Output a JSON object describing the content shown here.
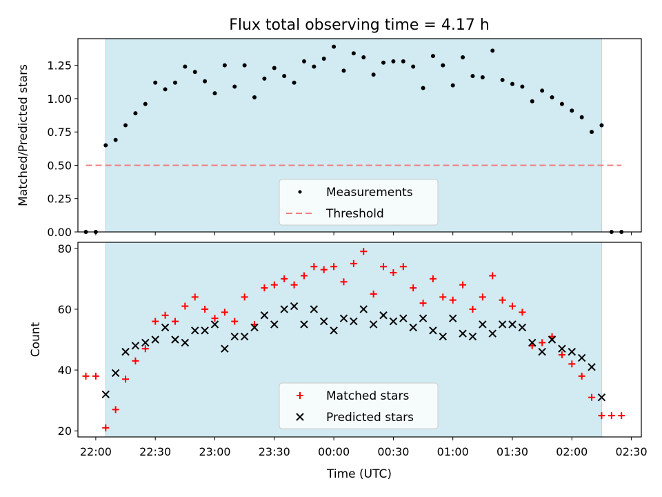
{
  "title": "Flux total observing time = 4.17 h",
  "colors": {
    "shade": "#add8e6",
    "measurements": "#000000",
    "threshold": "#f08080",
    "matched": "#ff0000",
    "predicted": "#000000"
  },
  "chart_data": [
    {
      "type": "scatter",
      "ylabel": "Matched/Predicted stars",
      "ylim": [
        0,
        1.45
      ],
      "yticks": [
        "0.00",
        "0.25",
        "0.50",
        "0.75",
        "1.00",
        "1.25"
      ],
      "xlim": [
        "21:51",
        "02:35"
      ],
      "shaded_interval": [
        "22:05",
        "02:15"
      ],
      "legend_position": "lower center",
      "legend": [
        "Measurements",
        "Threshold"
      ],
      "series": [
        {
          "name": "Measurements",
          "marker": "dot",
          "points": [
            [
              "21:55",
              0.0
            ],
            [
              "22:00",
              0.0
            ],
            [
              "22:05",
              0.65
            ],
            [
              "22:10",
              0.69
            ],
            [
              "22:15",
              0.8
            ],
            [
              "22:20",
              0.89
            ],
            [
              "22:25",
              0.96
            ],
            [
              "22:30",
              1.12
            ],
            [
              "22:35",
              1.07
            ],
            [
              "22:40",
              1.12
            ],
            [
              "22:45",
              1.24
            ],
            [
              "22:50",
              1.2
            ],
            [
              "22:55",
              1.13
            ],
            [
              "23:00",
              1.04
            ],
            [
              "23:05",
              1.25
            ],
            [
              "23:10",
              1.09
            ],
            [
              "23:15",
              1.25
            ],
            [
              "23:20",
              1.01
            ],
            [
              "23:25",
              1.15
            ],
            [
              "23:30",
              1.23
            ],
            [
              "23:35",
              1.17
            ],
            [
              "23:40",
              1.12
            ],
            [
              "23:45",
              1.28
            ],
            [
              "23:50",
              1.24
            ],
            [
              "23:55",
              1.3
            ],
            [
              "00:00",
              1.39
            ],
            [
              "00:05",
              1.21
            ],
            [
              "00:10",
              1.34
            ],
            [
              "00:15",
              1.31
            ],
            [
              "00:20",
              1.18
            ],
            [
              "00:25",
              1.27
            ],
            [
              "00:30",
              1.28
            ],
            [
              "00:35",
              1.28
            ],
            [
              "00:40",
              1.24
            ],
            [
              "00:45",
              1.08
            ],
            [
              "00:50",
              1.32
            ],
            [
              "00:55",
              1.25
            ],
            [
              "01:00",
              1.1
            ],
            [
              "01:05",
              1.31
            ],
            [
              "01:10",
              1.17
            ],
            [
              "01:15",
              1.16
            ],
            [
              "01:20",
              1.36
            ],
            [
              "01:25",
              1.14
            ],
            [
              "01:30",
              1.11
            ],
            [
              "01:35",
              1.09
            ],
            [
              "01:40",
              0.98
            ],
            [
              "01:45",
              1.06
            ],
            [
              "01:50",
              1.01
            ],
            [
              "01:55",
              0.96
            ],
            [
              "02:00",
              0.91
            ],
            [
              "02:05",
              0.86
            ],
            [
              "02:10",
              0.75
            ],
            [
              "02:15",
              0.8
            ],
            [
              "02:20",
              0.0
            ],
            [
              "02:25",
              0.0
            ]
          ]
        },
        {
          "name": "Threshold",
          "line": "dashed",
          "points": [
            [
              "21:55",
              0.5
            ],
            [
              "02:25",
              0.5
            ]
          ]
        }
      ]
    },
    {
      "type": "scatter",
      "ylabel": "Count",
      "xlabel": "Time (UTC)",
      "ylim": [
        18,
        82
      ],
      "yticks": [
        "20",
        "40",
        "60",
        "80"
      ],
      "xlim": [
        "21:51",
        "02:35"
      ],
      "xticks": [
        "22:00",
        "22:30",
        "23:00",
        "23:30",
        "00:00",
        "00:30",
        "01:00",
        "01:30",
        "02:00",
        "02:30"
      ],
      "shaded_interval": [
        "22:05",
        "02:15"
      ],
      "legend_position": "lower center",
      "legend": [
        "Matched stars",
        "Predicted stars"
      ],
      "series": [
        {
          "name": "Matched stars",
          "marker": "plus",
          "points": [
            [
              "21:55",
              38
            ],
            [
              "22:00",
              38
            ],
            [
              "22:05",
              21
            ],
            [
              "22:10",
              27
            ],
            [
              "22:15",
              37
            ],
            [
              "22:20",
              43
            ],
            [
              "22:25",
              47
            ],
            [
              "22:30",
              56
            ],
            [
              "22:35",
              58
            ],
            [
              "22:40",
              56
            ],
            [
              "22:45",
              61
            ],
            [
              "22:50",
              64
            ],
            [
              "22:55",
              60
            ],
            [
              "23:00",
              57
            ],
            [
              "23:05",
              59
            ],
            [
              "23:10",
              56
            ],
            [
              "23:15",
              64
            ],
            [
              "23:20",
              55
            ],
            [
              "23:25",
              67
            ],
            [
              "23:30",
              68
            ],
            [
              "23:35",
              70
            ],
            [
              "23:40",
              68
            ],
            [
              "23:45",
              71
            ],
            [
              "23:50",
              74
            ],
            [
              "23:55",
              73
            ],
            [
              "00:00",
              74
            ],
            [
              "00:05",
              69
            ],
            [
              "00:10",
              75
            ],
            [
              "00:15",
              79
            ],
            [
              "00:20",
              65
            ],
            [
              "00:25",
              74
            ],
            [
              "00:30",
              72
            ],
            [
              "00:35",
              74
            ],
            [
              "00:40",
              67
            ],
            [
              "00:45",
              62
            ],
            [
              "00:50",
              70
            ],
            [
              "00:55",
              64
            ],
            [
              "01:00",
              63
            ],
            [
              "01:05",
              68
            ],
            [
              "01:10",
              60
            ],
            [
              "01:15",
              64
            ],
            [
              "01:20",
              71
            ],
            [
              "01:25",
              63
            ],
            [
              "01:30",
              61
            ],
            [
              "01:35",
              59
            ],
            [
              "01:40",
              48
            ],
            [
              "01:45",
              49
            ],
            [
              "01:50",
              51
            ],
            [
              "01:55",
              45
            ],
            [
              "02:00",
              42
            ],
            [
              "02:05",
              38
            ],
            [
              "02:10",
              31
            ],
            [
              "02:15",
              25
            ],
            [
              "02:20",
              25
            ],
            [
              "02:25",
              25
            ]
          ]
        },
        {
          "name": "Predicted stars",
          "marker": "x",
          "points": [
            [
              "22:05",
              32
            ],
            [
              "22:10",
              39
            ],
            [
              "22:15",
              46
            ],
            [
              "22:20",
              48
            ],
            [
              "22:25",
              49
            ],
            [
              "22:30",
              50
            ],
            [
              "22:35",
              54
            ],
            [
              "22:40",
              50
            ],
            [
              "22:45",
              49
            ],
            [
              "22:50",
              53
            ],
            [
              "22:55",
              53
            ],
            [
              "23:00",
              55
            ],
            [
              "23:05",
              47
            ],
            [
              "23:10",
              51
            ],
            [
              "23:15",
              51
            ],
            [
              "23:20",
              54
            ],
            [
              "23:25",
              58
            ],
            [
              "23:30",
              55
            ],
            [
              "23:35",
              60
            ],
            [
              "23:40",
              61
            ],
            [
              "23:45",
              55
            ],
            [
              "23:50",
              60
            ],
            [
              "23:55",
              56
            ],
            [
              "00:00",
              53
            ],
            [
              "00:05",
              57
            ],
            [
              "00:10",
              56
            ],
            [
              "00:15",
              60
            ],
            [
              "00:20",
              55
            ],
            [
              "00:25",
              58
            ],
            [
              "00:30",
              56
            ],
            [
              "00:35",
              57
            ],
            [
              "00:40",
              54
            ],
            [
              "00:45",
              57
            ],
            [
              "00:50",
              53
            ],
            [
              "00:55",
              51
            ],
            [
              "01:00",
              57
            ],
            [
              "01:05",
              52
            ],
            [
              "01:10",
              51
            ],
            [
              "01:15",
              55
            ],
            [
              "01:20",
              52
            ],
            [
              "01:25",
              55
            ],
            [
              "01:30",
              55
            ],
            [
              "01:35",
              54
            ],
            [
              "01:40",
              49
            ],
            [
              "01:45",
              46
            ],
            [
              "01:50",
              50
            ],
            [
              "01:55",
              47
            ],
            [
              "02:00",
              46
            ],
            [
              "02:05",
              44
            ],
            [
              "02:10",
              41
            ],
            [
              "02:15",
              31
            ]
          ]
        }
      ]
    }
  ]
}
